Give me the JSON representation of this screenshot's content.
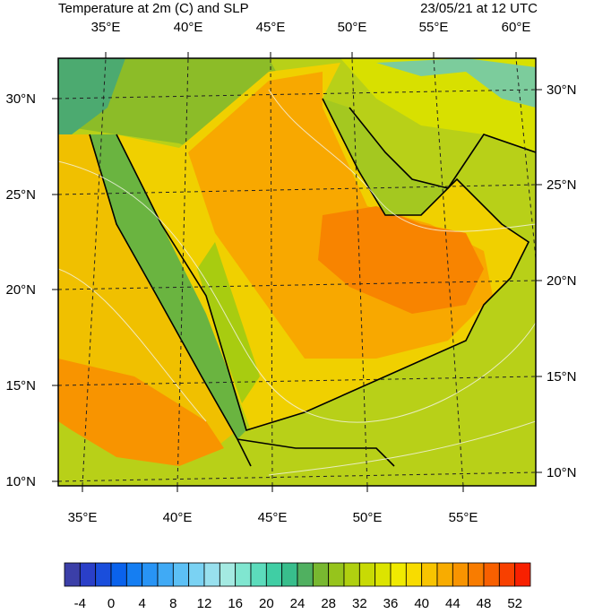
{
  "header": {
    "title": "Temperature at 2m (C) and SLP",
    "timestamp": "23/05/21 at 12 UTC"
  },
  "map": {
    "top_labels": [
      "35°E",
      "40°E",
      "45°E",
      "50°E",
      "55°E",
      "60°E"
    ],
    "bottom_labels": [
      "35°E",
      "40°E",
      "45°E",
      "50°E",
      "55°E"
    ],
    "left_labels": [
      "30°N",
      "25°N",
      "20°N",
      "15°N",
      "10°N"
    ],
    "right_labels": [
      "30°N",
      "25°N",
      "20°N",
      "15°N",
      "10°N"
    ]
  },
  "colorbar": {
    "ticks": [
      -4,
      0,
      4,
      8,
      12,
      16,
      20,
      24,
      28,
      32,
      36,
      40,
      44,
      48,
      52
    ],
    "colors": [
      "#3b3fa8",
      "#2a3fc8",
      "#1a4edc",
      "#0a62ec",
      "#157ef2",
      "#2894f5",
      "#40aaf5",
      "#5cc0f5",
      "#7ad2f3",
      "#98e0ee",
      "#a4eae2",
      "#80e6d0",
      "#5cdcbc",
      "#40cea4",
      "#38be8c",
      "#50b060",
      "#78b830",
      "#96c41c",
      "#b0d010",
      "#c8da04",
      "#dce400",
      "#f0ea00",
      "#f8dc00",
      "#f8c400",
      "#f8ac00",
      "#f89400",
      "#f87c00",
      "#f86000",
      "#f84000",
      "#f82000"
    ]
  }
}
